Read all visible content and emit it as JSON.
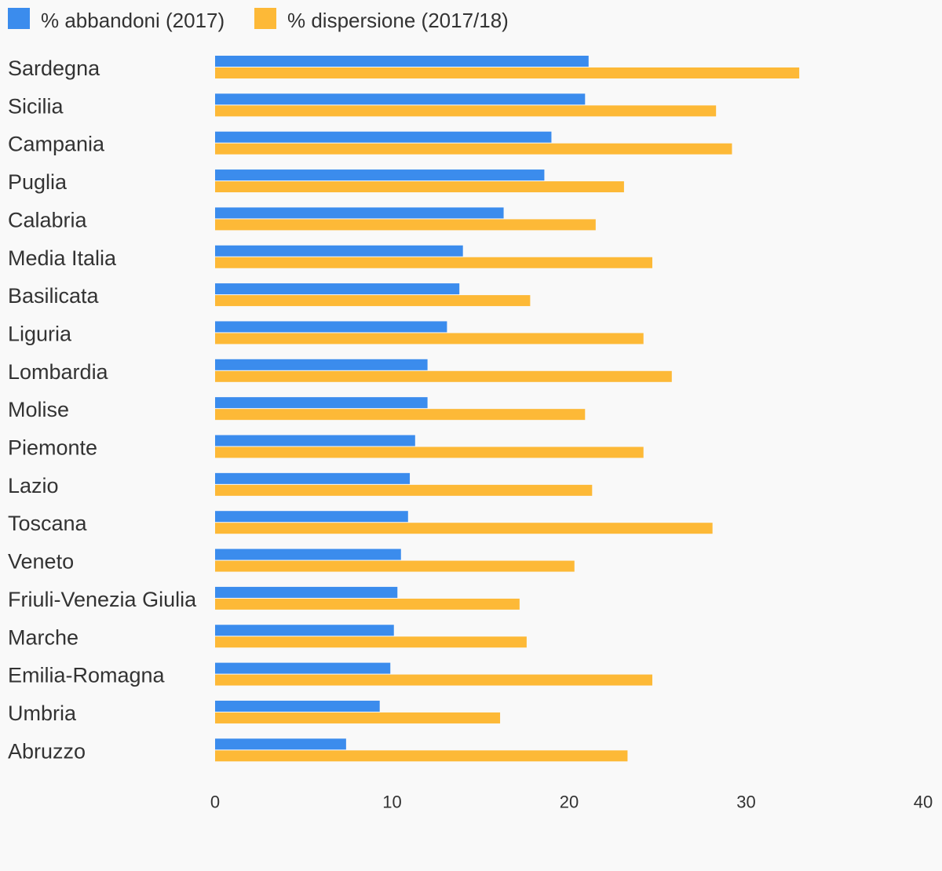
{
  "chart_data": {
    "type": "bar",
    "orientation": "horizontal",
    "categories": [
      "Sardegna",
      "Sicilia",
      "Campania",
      "Puglia",
      "Calabria",
      "Media Italia",
      "Basilicata",
      "Liguria",
      "Lombardia",
      "Molise",
      "Piemonte",
      "Lazio",
      "Toscana",
      "Veneto",
      "Friuli-Venezia Giulia",
      "Marche",
      "Emilia-Romagna",
      "Umbria",
      "Abruzzo"
    ],
    "series": [
      {
        "name": "% abbandoni (2017)",
        "color": "#3b8ced",
        "values": [
          21.1,
          20.9,
          19.0,
          18.6,
          16.3,
          14.0,
          13.8,
          13.1,
          12.0,
          12.0,
          11.3,
          11.0,
          10.9,
          10.5,
          10.3,
          10.1,
          9.9,
          9.3,
          7.4
        ]
      },
      {
        "name": "% dispersione (2017/18)",
        "color": "#fdb937",
        "values": [
          33.0,
          28.3,
          29.2,
          23.1,
          21.5,
          24.7,
          17.8,
          24.2,
          25.8,
          20.9,
          24.2,
          21.3,
          28.1,
          20.3,
          17.2,
          17.6,
          24.7,
          16.1,
          23.3
        ]
      }
    ],
    "xlim": [
      0,
      40
    ],
    "xticks": [
      "0",
      "10",
      "20",
      "30",
      "40"
    ],
    "grid": false,
    "legend_position": "top-left"
  }
}
